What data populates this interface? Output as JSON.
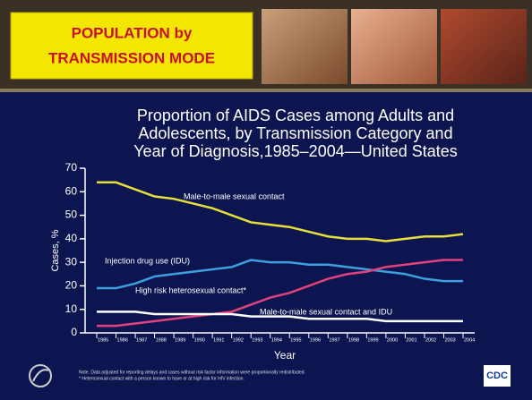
{
  "header": {
    "title": "POPULATION by TRANSMISSION MODE"
  },
  "chart_data": {
    "type": "line",
    "title": "Proportion of AIDS Cases among Adults and Adolescents, by Transmission Category and Year of Diagnosis,1985–2004—United States",
    "x_label": "Year",
    "y_label": "Cases, %",
    "categories": [
      "1985",
      "1986",
      "1987",
      "1988",
      "1989",
      "1990",
      "1991",
      "1992",
      "1993",
      "1994",
      "1995",
      "1996",
      "1997",
      "1998",
      "1999",
      "2000",
      "2001",
      "2002",
      "2003",
      "2004"
    ],
    "ylim": [
      0,
      70
    ],
    "yticks": [
      0,
      10,
      20,
      30,
      40,
      50,
      60,
      70
    ],
    "series": [
      {
        "name": "Male-to-male sexual contact",
        "color": "#e6e03a",
        "values": [
          64,
          64,
          61,
          58,
          57,
          55,
          53,
          50,
          47,
          46,
          45,
          43,
          41,
          40,
          40,
          39,
          40,
          41,
          41,
          42
        ]
      },
      {
        "name": "Injection drug use (IDU)",
        "color": "#3c9fe0",
        "values": [
          19,
          19,
          21,
          24,
          25,
          26,
          27,
          28,
          31,
          30,
          30,
          29,
          29,
          28,
          27,
          26,
          25,
          23,
          22,
          22
        ]
      },
      {
        "name": "High risk heterosexual contact*",
        "color": "#e2427c",
        "values": [
          3,
          3,
          4,
          5,
          6,
          7,
          8,
          9,
          12,
          15,
          17,
          20,
          23,
          25,
          26,
          28,
          29,
          30,
          31,
          31
        ]
      },
      {
        "name": "Male-to-male sexual contact and IDU",
        "color": "#ffffff",
        "values": [
          9,
          9,
          9,
          8,
          8,
          8,
          8,
          8,
          7,
          7,
          7,
          6,
          6,
          6,
          6,
          5,
          5,
          5,
          5,
          5
        ]
      }
    ],
    "notes": [
      "Note. Data adjusted for reporting delays and cases without risk factor information were proportionally redistributed.",
      "* Heterosexual contact with a person known to have or at high risk for HIV infection."
    ]
  },
  "footer": {
    "logo": "CDC"
  }
}
